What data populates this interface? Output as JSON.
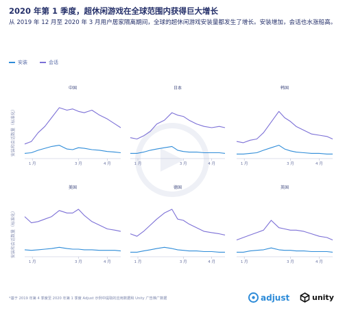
{
  "header": {
    "title": "2020 年第 1 季度，超休闲游戏在全球范围内获得巨大增长",
    "subtitle": "从 2019 年 12 月至 2020 年 3 月用户居家隔离期间，全球的超休闲游戏安装量都发生了增长。安装增加，会话也水涨船高。"
  },
  "legend": {
    "installs": "安装",
    "sessions": "会话"
  },
  "colors": {
    "installs": "#2d8bd8",
    "sessions": "#7b6fd6",
    "axis": "#b9bfd8",
    "text": "#25306a"
  },
  "ylabel": "安装和会话数量（标准化）",
  "footnote": "*基于 2019 年第 4 季度至 2020 年第 1 季度 Adjust 示例中提取的应用数据和 Unity 广告推广数据",
  "logos": {
    "adjust": "adjust",
    "unity": "unity"
  },
  "chart_data": [
    {
      "type": "line",
      "title": "中国",
      "x_ticks": [
        "1 月",
        "3 月",
        "4 月"
      ],
      "x_range": [
        0,
        100
      ],
      "series": [
        {
          "name": "会话",
          "x": [
            0,
            7,
            14,
            21,
            28,
            36,
            44,
            50,
            56,
            62,
            70,
            78,
            86,
            94,
            100
          ],
          "values": [
            0.2,
            0.24,
            0.38,
            0.48,
            0.62,
            0.78,
            0.74,
            0.76,
            0.72,
            0.7,
            0.74,
            0.66,
            0.6,
            0.52,
            0.46
          ]
        },
        {
          "name": "安装",
          "x": [
            0,
            7,
            14,
            21,
            28,
            36,
            44,
            50,
            56,
            62,
            70,
            78,
            86,
            94,
            100
          ],
          "values": [
            0.05,
            0.06,
            0.1,
            0.13,
            0.16,
            0.18,
            0.12,
            0.11,
            0.14,
            0.13,
            0.11,
            0.1,
            0.08,
            0.07,
            0.06
          ]
        }
      ]
    },
    {
      "type": "line",
      "title": "日本",
      "x_ticks": [
        "1 月",
        "3 月",
        "4 月"
      ],
      "x_range": [
        0,
        100
      ],
      "series": [
        {
          "name": "会话",
          "x": [
            0,
            7,
            14,
            21,
            28,
            36,
            44,
            50,
            56,
            62,
            70,
            78,
            86,
            94,
            100
          ],
          "values": [
            0.3,
            0.28,
            0.33,
            0.4,
            0.52,
            0.58,
            0.7,
            0.66,
            0.64,
            0.58,
            0.52,
            0.48,
            0.46,
            0.48,
            0.46
          ]
        },
        {
          "name": "安装",
          "x": [
            0,
            7,
            14,
            21,
            28,
            36,
            44,
            50,
            56,
            62,
            70,
            78,
            86,
            94,
            100
          ],
          "values": [
            0.05,
            0.05,
            0.07,
            0.1,
            0.12,
            0.14,
            0.16,
            0.1,
            0.08,
            0.07,
            0.07,
            0.06,
            0.06,
            0.06,
            0.05
          ]
        }
      ]
    },
    {
      "type": "line",
      "title": "韩国",
      "x_ticks": [
        "1 月",
        "3 月",
        "4 月"
      ],
      "x_range": [
        0,
        100
      ],
      "series": [
        {
          "name": "会话",
          "x": [
            0,
            7,
            14,
            21,
            28,
            36,
            44,
            50,
            56,
            62,
            70,
            78,
            86,
            94,
            100
          ],
          "values": [
            0.24,
            0.22,
            0.26,
            0.28,
            0.38,
            0.55,
            0.72,
            0.62,
            0.56,
            0.48,
            0.42,
            0.36,
            0.34,
            0.32,
            0.28
          ]
        },
        {
          "name": "安装",
          "x": [
            0,
            7,
            14,
            21,
            28,
            36,
            44,
            50,
            56,
            62,
            70,
            78,
            86,
            94,
            100
          ],
          "values": [
            0.04,
            0.04,
            0.05,
            0.06,
            0.1,
            0.14,
            0.18,
            0.12,
            0.09,
            0.07,
            0.06,
            0.05,
            0.05,
            0.04,
            0.04
          ]
        }
      ]
    },
    {
      "type": "line",
      "title": "美国",
      "x_ticks": [
        "1 月",
        "3 月",
        "4 月"
      ],
      "x_range": [
        0,
        100
      ],
      "series": [
        {
          "name": "会话",
          "x": [
            0,
            7,
            14,
            21,
            28,
            36,
            44,
            50,
            56,
            62,
            70,
            78,
            86,
            94,
            100
          ],
          "values": [
            0.62,
            0.52,
            0.54,
            0.58,
            0.62,
            0.72,
            0.68,
            0.68,
            0.74,
            0.64,
            0.54,
            0.48,
            0.42,
            0.4,
            0.38
          ]
        },
        {
          "name": "安装",
          "x": [
            0,
            7,
            14,
            21,
            28,
            36,
            44,
            50,
            56,
            62,
            70,
            78,
            86,
            94,
            100
          ],
          "values": [
            0.08,
            0.07,
            0.08,
            0.09,
            0.1,
            0.12,
            0.1,
            0.09,
            0.09,
            0.08,
            0.08,
            0.07,
            0.07,
            0.07,
            0.06
          ]
        }
      ]
    },
    {
      "type": "line",
      "title": "德国",
      "x_ticks": [
        "1 月",
        "3 月",
        "4 月"
      ],
      "x_range": [
        0,
        100
      ],
      "series": [
        {
          "name": "会话",
          "x": [
            0,
            7,
            14,
            21,
            28,
            36,
            44,
            50,
            56,
            62,
            70,
            78,
            86,
            94,
            100
          ],
          "values": [
            0.34,
            0.3,
            0.38,
            0.48,
            0.58,
            0.68,
            0.74,
            0.58,
            0.56,
            0.5,
            0.44,
            0.38,
            0.36,
            0.34,
            0.32
          ]
        },
        {
          "name": "安装",
          "x": [
            0,
            7,
            14,
            21,
            28,
            36,
            44,
            50,
            56,
            62,
            70,
            78,
            86,
            94,
            100
          ],
          "values": [
            0.04,
            0.04,
            0.06,
            0.08,
            0.1,
            0.12,
            0.1,
            0.08,
            0.07,
            0.06,
            0.06,
            0.05,
            0.05,
            0.04,
            0.04
          ]
        }
      ]
    },
    {
      "type": "line",
      "title": "英国",
      "x_ticks": [
        "1 月",
        "3 月",
        "4 月"
      ],
      "x_range": [
        0,
        100
      ],
      "series": [
        {
          "name": "会话",
          "x": [
            0,
            7,
            14,
            21,
            28,
            36,
            44,
            50,
            56,
            62,
            70,
            78,
            86,
            94,
            100
          ],
          "values": [
            0.24,
            0.28,
            0.32,
            0.36,
            0.4,
            0.56,
            0.44,
            0.42,
            0.4,
            0.4,
            0.38,
            0.34,
            0.3,
            0.28,
            0.24
          ]
        },
        {
          "name": "安装",
          "x": [
            0,
            7,
            14,
            21,
            28,
            36,
            44,
            50,
            56,
            62,
            70,
            78,
            86,
            94,
            100
          ],
          "values": [
            0.04,
            0.04,
            0.06,
            0.07,
            0.08,
            0.11,
            0.08,
            0.07,
            0.07,
            0.06,
            0.06,
            0.05,
            0.05,
            0.05,
            0.04
          ]
        }
      ]
    }
  ]
}
